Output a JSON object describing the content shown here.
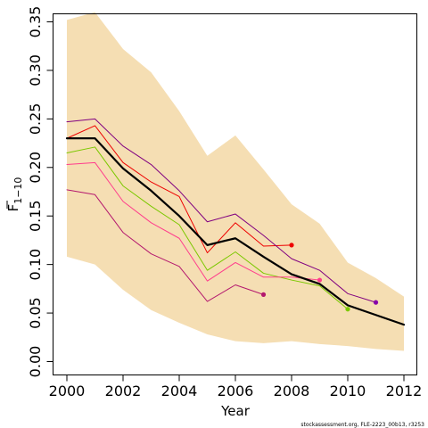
{
  "chart_data": {
    "type": "line",
    "xlabel": "Year",
    "ylabel": "F",
    "ylabel_subscript": "1−10",
    "xlim": [
      2000,
      2012
    ],
    "ylim": [
      0,
      0.35
    ],
    "x_ticks": [
      "2000",
      "2002",
      "2004",
      "2006",
      "2008",
      "2010",
      "2012"
    ],
    "y_ticks": [
      "0.00",
      "0.05",
      "0.10",
      "0.15",
      "0.20",
      "0.25",
      "0.30",
      "0.35"
    ],
    "band": {
      "color": "#f5deb3",
      "x": [
        2000,
        2001,
        2002,
        2003,
        2004,
        2005,
        2006,
        2007,
        2008,
        2009,
        2010,
        2011,
        2012
      ],
      "upper": [
        0.352,
        0.36,
        0.322,
        0.298,
        0.258,
        0.212,
        0.233,
        0.198,
        0.162,
        0.142,
        0.102,
        0.086,
        0.067
      ],
      "lower": [
        0.108,
        0.1,
        0.074,
        0.053,
        0.04,
        0.028,
        0.021,
        0.019,
        0.021,
        0.018,
        0.016,
        0.013,
        0.011
      ]
    },
    "series": [
      {
        "color": "#000000",
        "width": 2.2,
        "endpoint": false,
        "x": [
          2000,
          2001,
          2002,
          2003,
          2004,
          2005,
          2006,
          2007,
          2008,
          2009,
          2010,
          2011,
          2012
        ],
        "values": [
          0.23,
          0.23,
          0.199,
          0.176,
          0.15,
          0.12,
          0.127,
          0.108,
          0.09,
          0.08,
          0.058,
          0.048,
          0.038
        ]
      },
      {
        "color": "#ee0000",
        "width": 1,
        "endpoint": true,
        "x": [
          2000,
          2001,
          2002,
          2003,
          2004,
          2005,
          2006,
          2007,
          2008
        ],
        "values": [
          0.23,
          0.243,
          0.205,
          0.185,
          0.17,
          0.112,
          0.143,
          0.119,
          0.12
        ]
      },
      {
        "color": "#800080",
        "width": 1,
        "endpoint": false,
        "x": [
          2000,
          2001,
          2002,
          2003,
          2004,
          2005,
          2006,
          2007,
          2008,
          2009,
          2010,
          2011
        ],
        "values": [
          0.247,
          0.25,
          0.222,
          0.203,
          0.176,
          0.144,
          0.152,
          0.13,
          0.106,
          0.094,
          0.07,
          0.061
        ]
      },
      {
        "color": "#7bc800",
        "width": 1,
        "endpoint": true,
        "x": [
          2000,
          2001,
          2002,
          2003,
          2004,
          2005,
          2006,
          2007,
          2008,
          2009,
          2010
        ],
        "values": [
          0.215,
          0.221,
          0.181,
          0.16,
          0.141,
          0.094,
          0.113,
          0.091,
          0.084,
          0.078,
          0.054
        ]
      },
      {
        "color": "#ff3c8c",
        "width": 1,
        "endpoint": true,
        "x": [
          2000,
          2001,
          2002,
          2003,
          2004,
          2005,
          2006,
          2007,
          2008,
          2009
        ],
        "values": [
          0.203,
          0.205,
          0.165,
          0.143,
          0.127,
          0.083,
          0.102,
          0.087,
          0.087,
          0.084
        ]
      },
      {
        "color": "#b4186e",
        "width": 1,
        "endpoint": true,
        "x": [
          2000,
          2001,
          2002,
          2003,
          2004,
          2005,
          2006,
          2007
        ],
        "values": [
          0.177,
          0.172,
          0.133,
          0.111,
          0.098,
          0.062,
          0.079,
          0.069
        ]
      }
    ],
    "extra_points": [
      {
        "color": "#8800aa",
        "x": 2011,
        "value": 0.061
      }
    ]
  },
  "footnote": "stockassessment.org, FLE-2223_00b13, r3253"
}
